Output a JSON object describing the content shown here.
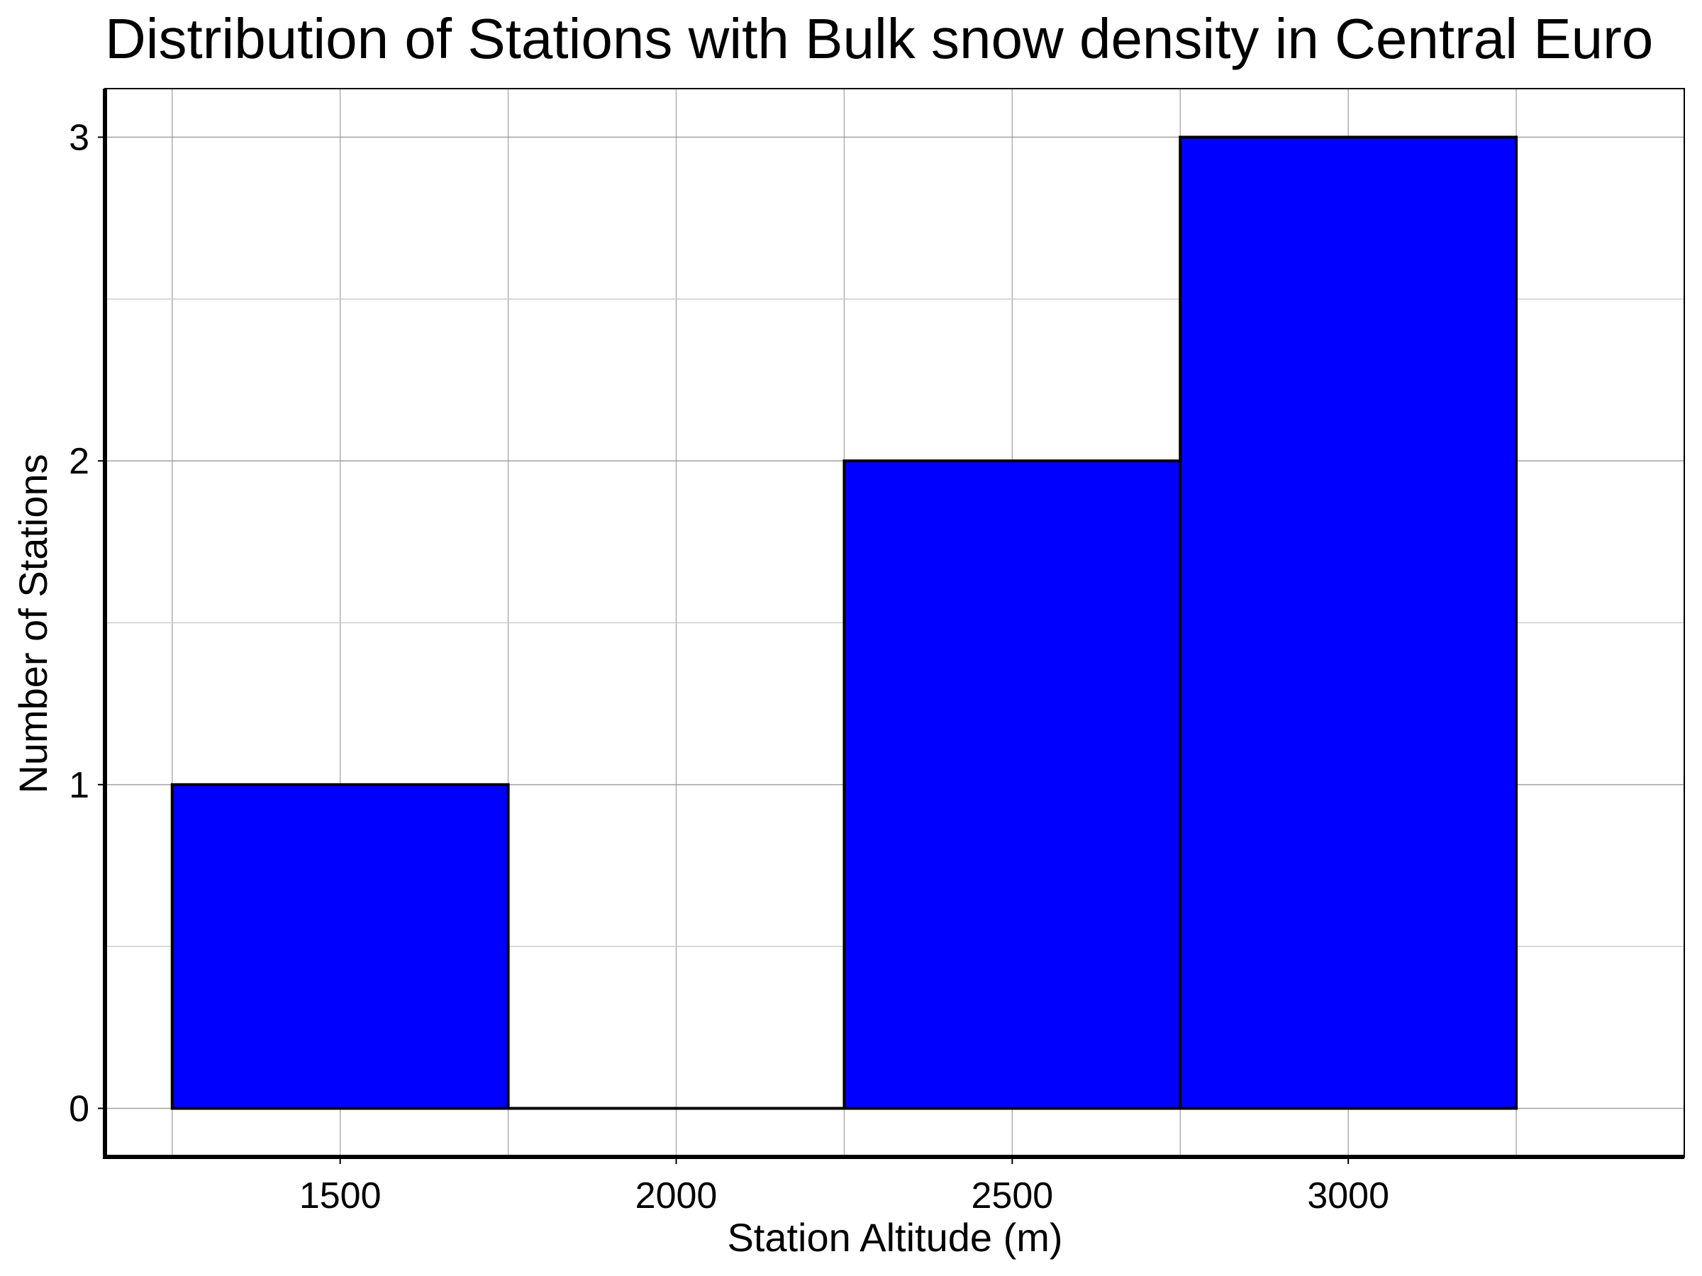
{
  "chart_data": {
    "type": "bar",
    "title": "Distribution of Stations with Bulk snow density in Central Euro",
    "xlabel": "Station Altitude (m)",
    "ylabel": "Number of Stations",
    "bins": [
      {
        "x0": 1250,
        "x1": 1750,
        "value": 1
      },
      {
        "x0": 1750,
        "x1": 2250,
        "value": 0
      },
      {
        "x0": 2250,
        "x1": 2750,
        "value": 2
      },
      {
        "x0": 2750,
        "x1": 3250,
        "value": 3
      }
    ],
    "xlim": [
      1150,
      3500
    ],
    "ylim": [
      -0.15,
      3.15
    ],
    "xticks": [
      1500,
      2000,
      2500,
      3000
    ],
    "yticks": [
      0,
      1,
      2,
      3
    ],
    "grid": true,
    "bar_color": "#0000ff",
    "edge_color": "#000000"
  }
}
